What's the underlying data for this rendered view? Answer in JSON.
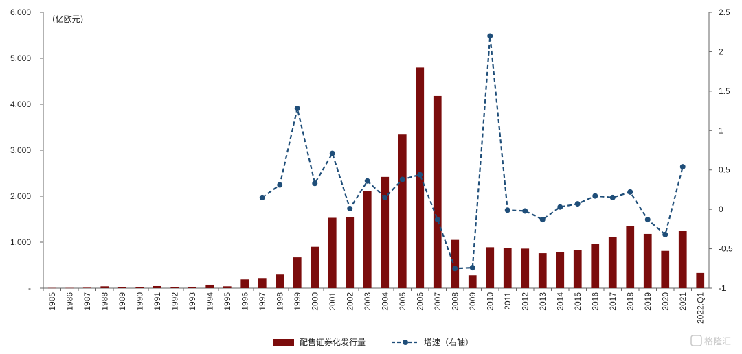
{
  "chart_data": {
    "type": "bar",
    "unit_label": "(亿欧元)",
    "categories": [
      "1985",
      "1986",
      "1987",
      "1988",
      "1989",
      "1990",
      "1991",
      "1992",
      "1993",
      "1994",
      "1995",
      "1996",
      "1997",
      "1998",
      "1999",
      "2000",
      "2001",
      "2002",
      "2003",
      "2004",
      "2005",
      "2006",
      "2007",
      "2008",
      "2009",
      "2010",
      "2011",
      "2012",
      "2013",
      "2014",
      "2015",
      "2016",
      "2017",
      "2018",
      "2019",
      "2020",
      "2021",
      "2022:Q1"
    ],
    "left_axis": {
      "ylim": [
        0,
        6000
      ],
      "ticks": [
        "-",
        "1,000",
        "2,000",
        "3,000",
        "4,000",
        "5,000",
        "6,000"
      ]
    },
    "right_axis": {
      "ylim": [
        -1,
        2.5
      ],
      "ticks": [
        "-1",
        "-0.5",
        "0",
        "0.5",
        "1",
        "1.5",
        "2",
        "2.5"
      ]
    },
    "series": [
      {
        "name": "配售证券化发行量",
        "type": "bar",
        "axis": "left",
        "color": "#7b0c0c",
        "values": [
          5,
          5,
          10,
          40,
          25,
          25,
          45,
          15,
          30,
          75,
          40,
          190,
          220,
          295,
          670,
          900,
          1530,
          1545,
          2110,
          2420,
          3340,
          4800,
          4180,
          1050,
          280,
          890,
          880,
          860,
          760,
          780,
          830,
          970,
          1110,
          1350,
          1180,
          810,
          1250,
          330
        ]
      },
      {
        "name": "增速（右轴）",
        "type": "line",
        "axis": "right",
        "color": "#1f4e79",
        "values": [
          null,
          null,
          null,
          null,
          null,
          null,
          null,
          null,
          null,
          null,
          null,
          null,
          0.15,
          0.31,
          1.28,
          0.33,
          0.71,
          0.01,
          0.36,
          0.15,
          0.38,
          0.44,
          -0.13,
          -0.75,
          -0.74,
          2.2,
          -0.01,
          -0.02,
          -0.13,
          0.03,
          0.07,
          0.17,
          0.15,
          0.22,
          -0.13,
          -0.32,
          0.54,
          null
        ]
      }
    ]
  },
  "watermark": {
    "text": "格隆汇"
  }
}
